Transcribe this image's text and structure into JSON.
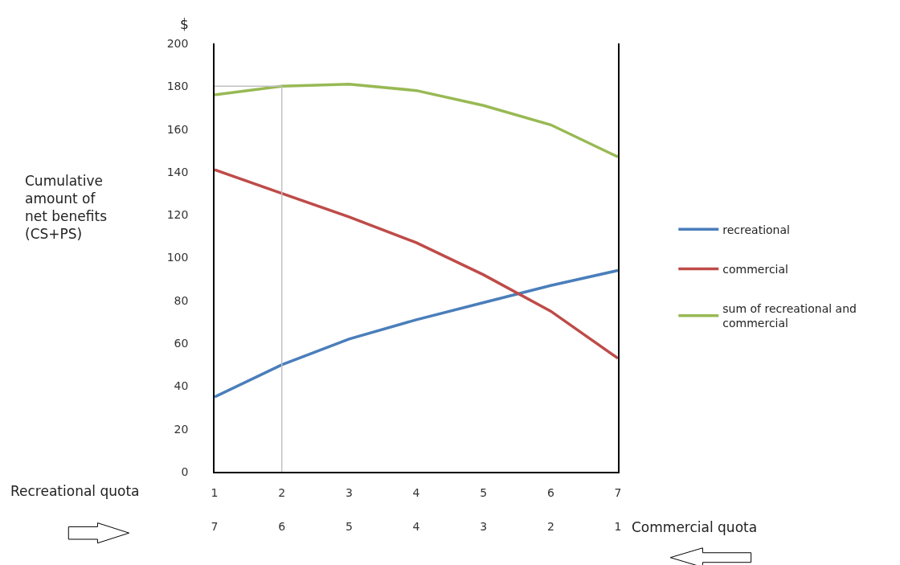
{
  "chart_data": {
    "type": "line",
    "xlabel": "Recreational quota",
    "x2label": "Commercial quota",
    "ylabel": "Cumulative amount of net benefits (CS+PS)",
    "annotations": [
      "$"
    ],
    "x": [
      1,
      2,
      3,
      4,
      5,
      6,
      7
    ],
    "xlim": [
      1,
      7
    ],
    "xticks": [
      1,
      2,
      3,
      4,
      5,
      6,
      7
    ],
    "x2lim": [
      7,
      1
    ],
    "x2ticks": [
      7,
      6,
      5,
      4,
      3,
      2,
      1
    ],
    "ylim": [
      0,
      200
    ],
    "yticks": [
      0,
      20,
      40,
      60,
      80,
      100,
      120,
      140,
      160,
      180,
      200
    ],
    "series": [
      {
        "name": "recreational",
        "color": "#4a7ebb",
        "values": [
          35,
          50,
          62,
          71,
          79,
          87,
          94
        ]
      },
      {
        "name": "commercial",
        "color": "#be4b48",
        "values": [
          141,
          130,
          119,
          107,
          92,
          75,
          53
        ]
      },
      {
        "name": "sum of recreational and commercial",
        "color": "#98b954",
        "values": [
          176,
          180,
          181,
          178,
          171,
          162,
          147
        ]
      }
    ],
    "ref_lines": [
      {
        "axis": "x",
        "value": 2,
        "color": "#c0c0c0"
      },
      {
        "axis": "y",
        "value": 180,
        "color": "#c0c0c0"
      }
    ],
    "legend": "right",
    "marker": "none",
    "line_style": "solid"
  }
}
